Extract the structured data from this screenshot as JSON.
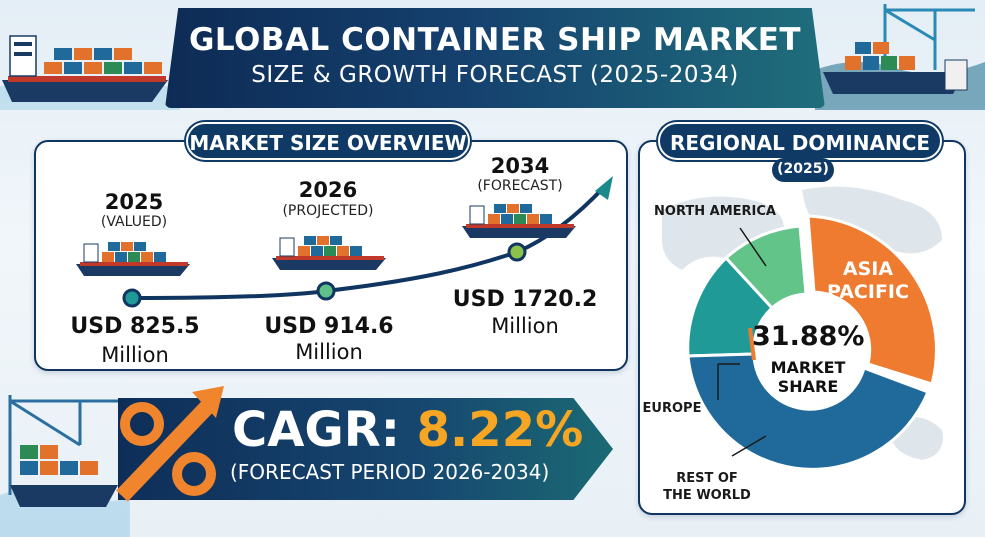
{
  "header": {
    "title": "GLOBAL CONTAINER SHIP MARKET",
    "subtitle": "SIZE & GROWTH FORECAST (2025-2034)"
  },
  "colors": {
    "navy": "#0f3560",
    "teal": "#1f8a8f",
    "green": "#5fc08a",
    "orange": "#ee7b30",
    "gold": "#f6a623"
  },
  "chart_data": [
    {
      "type": "line",
      "title": "MARKET SIZE OVERVIEW",
      "unit": "USD Million",
      "points": [
        {
          "year": "2025",
          "note": "(VALUED)",
          "value": 825.5,
          "value_label": "USD 825.5",
          "unit_label": "Million"
        },
        {
          "year": "2026",
          "note": "(PROJECTED)",
          "value": 914.6,
          "value_label": "USD 914.6",
          "unit_label": "Million"
        },
        {
          "year": "2034",
          "note": "(FORECAST)",
          "value": 1720.2,
          "value_label": "USD 1720.2",
          "unit_label": "Million"
        }
      ]
    },
    {
      "type": "pie",
      "title": "REGIONAL DOMINANCE",
      "subtitle": "(2025)",
      "highlight": {
        "value_label": "31.88%",
        "label": "MARKET SHARE",
        "region": "ASIA PACIFIC"
      },
      "slices": [
        {
          "name": "ASIA PACIFIC",
          "value": 31.88,
          "color": "#ee7b30"
        },
        {
          "name": "REST OF THE WORLD",
          "color": "#1f6a9a"
        },
        {
          "name": "EUROPE",
          "color": "#1f9a96"
        },
        {
          "name": "NORTH AMERICA",
          "color": "#63c48a"
        }
      ]
    }
  ],
  "cagr": {
    "label": "CAGR:",
    "value": "8.22%",
    "period": "(FORECAST PERIOD 2026-2034)"
  }
}
